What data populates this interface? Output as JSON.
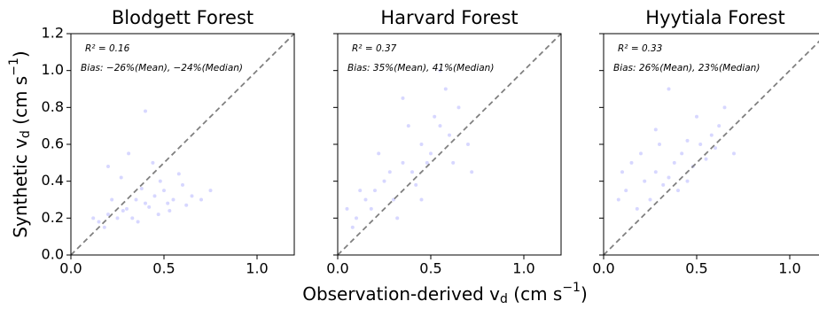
{
  "chart_data": [
    {
      "type": "scatter",
      "title": "Blodgett Forest",
      "annotations": [
        "R² = 0.16",
        "Bias: −26%(Mean), −24%(Median)"
      ],
      "color": "#7b7bff",
      "alpha": 0.3,
      "ytick_labels": true,
      "xlim": [
        0,
        1.2
      ],
      "ylim": [
        0,
        1.2
      ],
      "xticks": [
        {
          "value": 0,
          "label": "0.0"
        },
        0.5,
        {
          "value": 1,
          "label": "1.0"
        }
      ],
      "yticks": [
        {
          "value": 0,
          "label": "0.0"
        },
        0.2,
        0.4,
        0.6,
        0.8,
        {
          "value": 1,
          "label": "1.0"
        },
        1.2
      ],
      "x": [
        0.15,
        0.2,
        0.25,
        0.3,
        0.35,
        0.4,
        0.45,
        0.5,
        0.55,
        0.6,
        0.18,
        0.22,
        0.28,
        0.33,
        0.38,
        0.42,
        0.48,
        0.52,
        0.58,
        0.65,
        0.7,
        0.12,
        0.27,
        0.36,
        0.44,
        0.53,
        0.62,
        0.75,
        0.31,
        0.47,
        0.4,
        0.2
      ],
      "values": [
        0.18,
        0.22,
        0.2,
        0.25,
        0.3,
        0.28,
        0.32,
        0.35,
        0.3,
        0.38,
        0.15,
        0.3,
        0.24,
        0.2,
        0.36,
        0.26,
        0.4,
        0.28,
        0.44,
        0.32,
        0.3,
        0.2,
        0.42,
        0.18,
        0.5,
        0.24,
        0.27,
        0.35,
        0.55,
        0.22,
        0.78,
        0.48
      ]
    },
    {
      "type": "scatter",
      "title": "Harvard Forest",
      "annotations": [
        "R² = 0.37",
        "Bias: 35%(Mean), 41%(Median)"
      ],
      "color": "#7b7bff",
      "alpha": 0.3,
      "ytick_labels": false,
      "xlim": [
        0,
        1.2
      ],
      "ylim": [
        0,
        1.2
      ],
      "xticks": [
        {
          "value": 0,
          "label": "0.0"
        },
        0.5,
        {
          "value": 1,
          "label": "1.0"
        }
      ],
      "yticks": [
        0,
        0.2,
        0.4,
        0.6,
        0.8,
        1,
        1.2
      ],
      "x": [
        0.05,
        0.1,
        0.15,
        0.2,
        0.25,
        0.3,
        0.35,
        0.4,
        0.45,
        0.5,
        0.55,
        0.6,
        0.65,
        0.7,
        0.08,
        0.18,
        0.28,
        0.38,
        0.48,
        0.58,
        0.12,
        0.22,
        0.32,
        0.42,
        0.52,
        0.62,
        0.72,
        0.35,
        0.45,
        0.55
      ],
      "values": [
        0.25,
        0.2,
        0.3,
        0.35,
        0.4,
        0.3,
        0.5,
        0.45,
        0.6,
        0.55,
        0.7,
        0.65,
        0.8,
        0.6,
        0.15,
        0.25,
        0.45,
        0.7,
        0.5,
        0.9,
        0.35,
        0.55,
        0.2,
        0.38,
        0.75,
        0.5,
        0.45,
        0.85,
        0.3,
        1.0
      ]
    },
    {
      "type": "scatter",
      "title": "Hyytiala Forest",
      "annotations": [
        "R² = 0.33",
        "Bias: 26%(Mean), 23%(Median)"
      ],
      "color": "#7b7bff",
      "alpha": 0.3,
      "ytick_labels": false,
      "xlim": [
        0,
        1.2
      ],
      "ylim": [
        0,
        1.2
      ],
      "xticks": [
        {
          "value": 0,
          "label": "0.0"
        },
        0.5,
        {
          "value": 1,
          "label": "1.0"
        }
      ],
      "yticks": [
        0,
        0.2,
        0.4,
        0.6,
        0.8,
        1,
        1.2
      ],
      "x": [
        0.08,
        0.12,
        0.18,
        0.22,
        0.28,
        0.32,
        0.38,
        0.42,
        0.48,
        0.52,
        0.58,
        0.62,
        0.15,
        0.25,
        0.35,
        0.45,
        0.55,
        0.65,
        0.2,
        0.3,
        0.4,
        0.5,
        0.6,
        0.7,
        0.1,
        0.35,
        0.45,
        0.28
      ],
      "values": [
        0.3,
        0.35,
        0.25,
        0.4,
        0.45,
        0.38,
        0.5,
        0.55,
        0.48,
        0.6,
        0.65,
        0.7,
        0.5,
        0.3,
        0.42,
        0.62,
        0.52,
        0.8,
        0.55,
        0.6,
        0.35,
        0.75,
        0.58,
        0.55,
        0.45,
        0.9,
        0.4,
        0.68
      ]
    }
  ],
  "ylabel": [
    "Synthetic v",
    "d",
    " (cm s",
    "−1",
    ")"
  ],
  "xlabel": [
    "Observation-derived v",
    "d",
    " (cm s",
    "−1",
    ")"
  ]
}
